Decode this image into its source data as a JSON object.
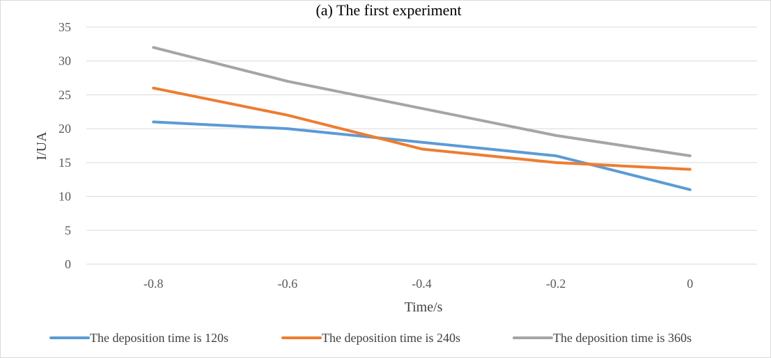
{
  "chart_data": {
    "type": "line",
    "title": "(a) The first experiment",
    "xlabel": "Time/s",
    "ylabel": "I/UA",
    "x": [
      -0.8,
      -0.6,
      -0.4,
      -0.2,
      0
    ],
    "x_tick_labels": [
      "-0.8",
      "-0.6",
      "-0.4",
      "-0.2",
      "0"
    ],
    "y_tick_labels": [
      "0",
      "5",
      "10",
      "15",
      "20",
      "25",
      "30",
      "35"
    ],
    "ylim": [
      0,
      35
    ],
    "xlim": [
      -0.9,
      0.1
    ],
    "y_major_step": 5,
    "grid": true,
    "legend_position": "bottom",
    "series": [
      {
        "name": "The deposition time is 120s",
        "color": "#5b9bd5",
        "values": [
          21,
          20,
          18,
          16,
          11
        ]
      },
      {
        "name": "The deposition time is 240s",
        "color": "#ed7d31",
        "values": [
          26,
          22,
          17,
          15,
          14
        ]
      },
      {
        "name": "The deposition time is 360s",
        "color": "#a5a5a5",
        "values": [
          32,
          27,
          23,
          19,
          16
        ]
      }
    ]
  }
}
